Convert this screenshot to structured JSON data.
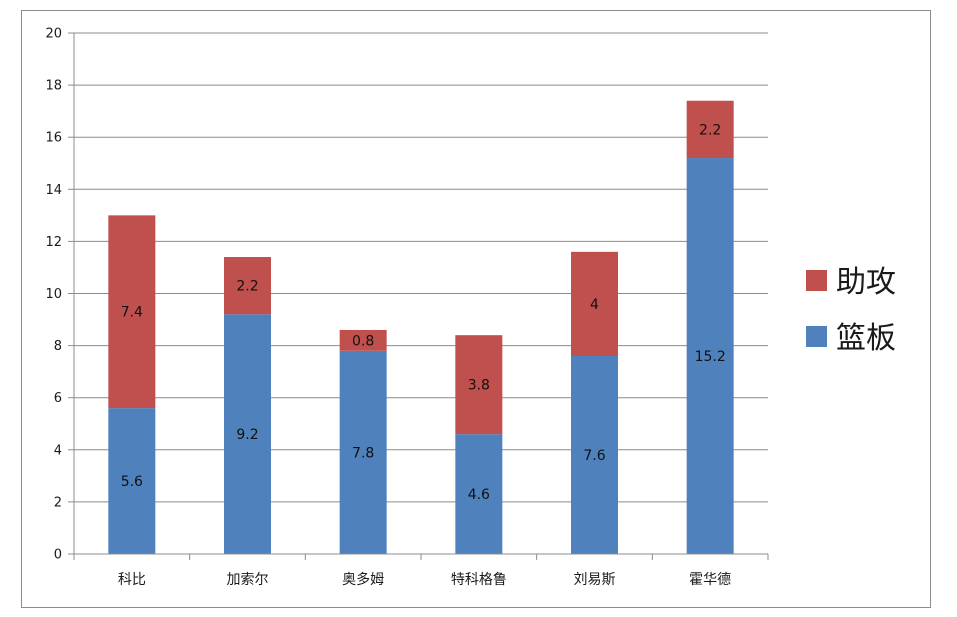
{
  "chart_data": {
    "type": "bar",
    "stacked": true,
    "categories": [
      "科比",
      "加索尔",
      "奥多姆",
      "特科格鲁",
      "刘易斯",
      "霍华德"
    ],
    "series": [
      {
        "name": "篮板",
        "color": "#4f81bd",
        "values": [
          5.6,
          9.2,
          7.8,
          4.6,
          7.6,
          15.2
        ]
      },
      {
        "name": "助攻",
        "color": "#c0504d",
        "values": [
          7.4,
          2.2,
          0.8,
          3.8,
          4,
          2.2
        ]
      }
    ],
    "ylim": [
      0,
      20
    ],
    "yticks": [
      0,
      2,
      4,
      6,
      8,
      10,
      12,
      14,
      16,
      18,
      20
    ],
    "grid": true,
    "legend": "right",
    "title": "",
    "xlabel": "",
    "ylabel": ""
  }
}
